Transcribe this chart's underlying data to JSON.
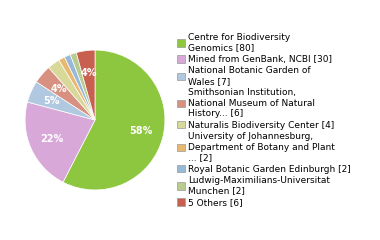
{
  "labels": [
    "Centre for Biodiversity\nGenomics [80]",
    "Mined from GenBank, NCBI [30]",
    "National Botanic Garden of\nWales [7]",
    "Smithsonian Institution,\nNational Museum of Natural\nHistory... [6]",
    "Naturalis Biodiversity Center [4]",
    "University of Johannesburg,\nDepartment of Botany and Plant\n... [2]",
    "Royal Botanic Garden Edinburgh [2]",
    "Ludwig-Maximilians-Universitat\nMunchen [2]",
    "5 Others [6]"
  ],
  "values": [
    80,
    30,
    7,
    6,
    4,
    2,
    2,
    2,
    6
  ],
  "colors": [
    "#8dc63f",
    "#d8a8d8",
    "#b0c8e0",
    "#d89080",
    "#d8d898",
    "#e8b870",
    "#98b8d8",
    "#b8cc90",
    "#c86050"
  ],
  "show_pct_threshold": 3,
  "figure_bg": "#ffffff",
  "text_color": "#ffffff",
  "fontsize_pct": 7,
  "fontsize_legend": 6.5
}
